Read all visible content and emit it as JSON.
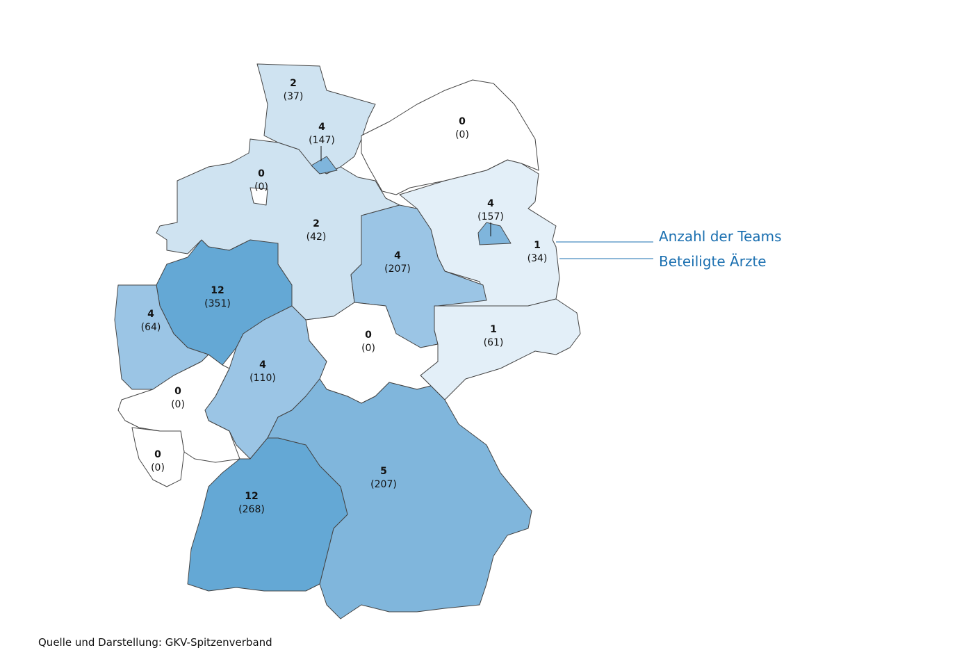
{
  "regions": [
    {
      "teams": 2,
      "doctors": "(37)",
      "color": "#cfe3f1"
    },
    {
      "teams": 4,
      "doctors": "(147)",
      "color": "#7fb5dc"
    },
    {
      "teams": 0,
      "doctors": "(0)",
      "color": "#ffffff"
    },
    {
      "teams": 0,
      "doctors": "(0)",
      "color": "#ffffff"
    },
    {
      "teams": 2,
      "doctors": "(42)",
      "color": "#cfe3f1"
    },
    {
      "teams": 4,
      "doctors": "(157)",
      "color": "#7fb5dc"
    },
    {
      "teams": 1,
      "doctors": "(34)",
      "color": "#e3eff8"
    },
    {
      "teams": 4,
      "doctors": "(207)",
      "color": "#9bc5e5"
    },
    {
      "teams": 12,
      "doctors": "(351)",
      "color": "#64a8d5"
    },
    {
      "teams": 4,
      "doctors": "(64)",
      "color": "#9bc5e5"
    },
    {
      "teams": 1,
      "doctors": "(61)",
      "color": "#e3eff8"
    },
    {
      "teams": 0,
      "doctors": "(0)",
      "color": "#ffffff"
    },
    {
      "teams": 4,
      "doctors": "(110)",
      "color": "#9bc5e5"
    },
    {
      "teams": 0,
      "doctors": "(0)",
      "color": "#ffffff"
    },
    {
      "teams": 0,
      "doctors": "(0)",
      "color": "#ffffff"
    },
    {
      "teams": 5,
      "doctors": "(207)",
      "color": "#80b6dc"
    },
    {
      "teams": 12,
      "doctors": "(268)",
      "color": "#64a8d5"
    }
  ],
  "legend": {
    "teams": "Anzahl der Teams",
    "doctors": "Beteiligte Ärzte"
  },
  "source": "Quelle und Darstellung: GKV-Spitzenverband"
}
